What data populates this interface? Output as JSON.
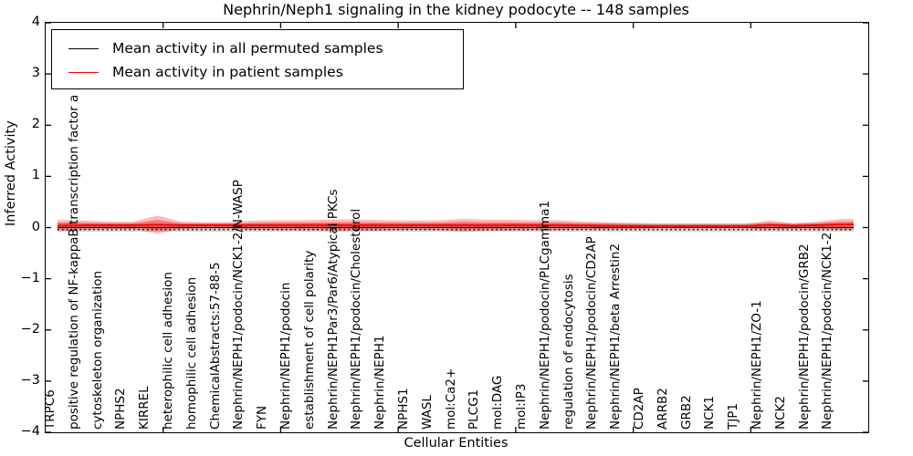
{
  "chart_data": {
    "type": "line",
    "title": "Nephrin/Neph1 signaling in the kidney podocyte -- 148 samples",
    "xlabel": "Cellular Entities",
    "ylabel": "Inferred Activity",
    "ylim": [
      -4,
      4
    ],
    "ytick_labels": [
      "4",
      "3",
      "2",
      "1",
      "0",
      "−1",
      "−2",
      "−3",
      "−4"
    ],
    "x_axis_range": [
      0,
      35
    ],
    "x_axis_ticks": [
      5,
      10,
      15,
      20,
      25,
      30
    ],
    "grid": false,
    "legend_position": "upper left",
    "legend": [
      {
        "label": "Mean activity in all permuted samples",
        "color": "#000000"
      },
      {
        "label": "Mean activity in patient samples",
        "color": "#ff0000"
      }
    ],
    "categories": [
      "TRPC6",
      "positive regulation of NF-kappaB transcription factor a",
      "cytoskeleton organization",
      "NPHS2",
      "KIRREL",
      "heterophilic cell adhesion",
      "homophilic cell adhesion",
      "ChemicalAbstracts:57-88-5",
      "Nephrin/NEPH1/podocin/NCK1-2/N-WASP",
      "FYN",
      "Nephrin/NEPH1/podocin",
      "establishment of cell polarity",
      "Nephrin/NEPH1Par3/Par6/Atypical PKCs",
      "Nephrin/NEPH1/podocin/Cholesterol",
      "Nephrin/NEPH1",
      "NPHS1",
      "WASL",
      "mol:Ca2+",
      "PLCG1",
      "mol:DAG",
      "mol:IP3",
      "Nephrin/NEPH1/podocin/PLCgamma1",
      "regulation of endocytosis",
      "Nephrin/NEPH1/podocin/CD2AP",
      "Nephrin/NEPH1/beta Arrestin2",
      "CD2AP",
      "ARRB2",
      "GRB2",
      "NCK1",
      "TJP1",
      "Nephrin/NEPH1/ZO-1",
      "NCK2",
      "Nephrin/NEPH1/podocin/GRB2",
      "Nephrin/NEPH1/podocin/NCK1-2"
    ],
    "permuted_mean": 0.0,
    "permuted_spread": 0.08,
    "dotted_reference_value": -0.04,
    "patient_mean": [
      0.04,
      0.045,
      0.045,
      0.045,
      0.055,
      0.045,
      0.045,
      0.045,
      0.045,
      0.045,
      0.045,
      0.045,
      0.045,
      0.045,
      0.045,
      0.045,
      0.045,
      0.045,
      0.045,
      0.045,
      0.045,
      0.045,
      0.04,
      0.035,
      0.03,
      0.03,
      0.03,
      0.03,
      0.03,
      0.03,
      0.05,
      0.035,
      0.045,
      0.06
    ],
    "patient_spread": [
      0.107,
      0.089,
      0.071,
      0.071,
      0.178,
      0.071,
      0.062,
      0.062,
      0.089,
      0.098,
      0.098,
      0.107,
      0.116,
      0.107,
      0.098,
      0.089,
      0.098,
      0.125,
      0.107,
      0.107,
      0.098,
      0.098,
      0.08,
      0.071,
      0.062,
      0.045,
      0.045,
      0.045,
      0.045,
      0.045,
      0.089,
      0.053,
      0.071,
      0.107
    ],
    "colors": {
      "patient_line": "#ff0000",
      "permuted_line": "#000000",
      "patient_band": "rgba(255,0,0,0.28)",
      "patient_band_inner": "rgba(255,0,0,0.38)",
      "permuted_band": "rgba(120,120,120,0.32)"
    }
  }
}
